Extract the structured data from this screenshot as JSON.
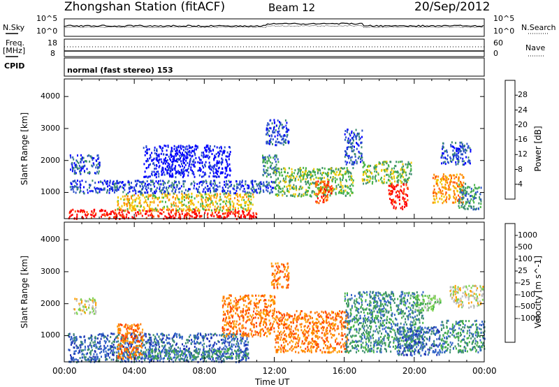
{
  "header": {
    "station": "Zhongshan Station (fitACF)",
    "beam": "Beam 12",
    "date": "20/Sep/2012"
  },
  "panels": {
    "sky_label": "N.Sky",
    "search_label": "N.Search",
    "sky_ticks_left": [
      "10^5",
      "10^0"
    ],
    "sky_ticks_right": [
      "10^5",
      "10^0"
    ],
    "freq_label_1": "Freq.",
    "freq_label_2": "[MHz]",
    "freq_ticks": [
      "18",
      "8"
    ],
    "nave_label": "Nave",
    "nave_ticks": [
      "60",
      "0"
    ],
    "cpid_label": "CPID",
    "cpid_text": "normal (fast stereo) 153"
  },
  "chart_data": [
    {
      "type": "heatmap",
      "name": "power",
      "ylabel": "Slant Range [km]",
      "yticks": [
        1000,
        2000,
        3000,
        4000
      ],
      "ylim": [
        180,
        4550
      ],
      "colorbar_label": "Power [dB]",
      "colorbar_ticks": [
        "4",
        "8",
        "12",
        "16",
        "20",
        "24",
        "28"
      ],
      "colors": [
        "#0000ff",
        "#2850c8",
        "#3c8c6e",
        "#46b446",
        "#f0c800",
        "#ff8c00",
        "#ff5000",
        "#ff0000"
      ],
      "regions": [
        {
          "t": [
            0.2,
            11.0
          ],
          "r": [
            200,
            500
          ],
          "level": 7
        },
        {
          "t": [
            3.0,
            10.8
          ],
          "r": [
            450,
            1000
          ],
          "level": 4
        },
        {
          "t": [
            0.3,
            12.0
          ],
          "r": [
            1000,
            1400
          ],
          "level": 1
        },
        {
          "t": [
            0.3,
            2.0
          ],
          "r": [
            1600,
            2200
          ],
          "level": 1
        },
        {
          "t": [
            4.5,
            9.5
          ],
          "r": [
            1500,
            2500
          ],
          "level": 0
        },
        {
          "t": [
            11.3,
            12.2
          ],
          "r": [
            1500,
            2200
          ],
          "level": 2
        },
        {
          "t": [
            11.5,
            12.8
          ],
          "r": [
            2500,
            3300
          ],
          "level": 1
        },
        {
          "t": [
            12.0,
            16.5
          ],
          "r": [
            900,
            1800
          ],
          "level": 3
        },
        {
          "t": [
            14.3,
            15.3
          ],
          "r": [
            700,
            1400
          ],
          "level": 6
        },
        {
          "t": [
            16.0,
            17.0
          ],
          "r": [
            1900,
            3000
          ],
          "level": 1
        },
        {
          "t": [
            17.0,
            19.8
          ],
          "r": [
            1300,
            2000
          ],
          "level": 3
        },
        {
          "t": [
            18.5,
            19.6
          ],
          "r": [
            500,
            1300
          ],
          "level": 7
        },
        {
          "t": [
            21.0,
            22.8
          ],
          "r": [
            700,
            1600
          ],
          "level": 5
        },
        {
          "t": [
            21.5,
            23.2
          ],
          "r": [
            1900,
            2600
          ],
          "level": 1
        },
        {
          "t": [
            22.5,
            23.8
          ],
          "r": [
            500,
            1300
          ],
          "level": 2
        }
      ]
    },
    {
      "type": "heatmap",
      "name": "velocity",
      "ylabel": "Slant Range [km]",
      "yticks": [
        1000,
        2000,
        3000,
        4000
      ],
      "ylim": [
        180,
        4550
      ],
      "xlabel": "Time UT",
      "xticks": [
        "00:00",
        "04:00",
        "08:00",
        "12:00",
        "16:00",
        "20:00",
        "00:00"
      ],
      "xlim": [
        0,
        24
      ],
      "colorbar_label": "Velocity [m s^-1]",
      "colorbar_ticks": [
        "1000",
        "500",
        "100",
        "25",
        "-25",
        "-100",
        "-500",
        "-1000"
      ],
      "colors": [
        "#1e32b4",
        "#3264c8",
        "#3c8c6e",
        "#46b446",
        "#7cd250",
        "#bebebe",
        "#ffa000",
        "#ff7800",
        "#ff4000",
        "#ff0000"
      ],
      "regions": [
        {
          "t": [
            0.2,
            10.5
          ],
          "r": [
            200,
            1100
          ],
          "level": 1
        },
        {
          "t": [
            3.5,
            10.5
          ],
          "r": [
            300,
            600
          ],
          "level": 2
        },
        {
          "t": [
            0.5,
            1.8
          ],
          "r": [
            1700,
            2200
          ],
          "level": 5
        },
        {
          "t": [
            3.0,
            4.5
          ],
          "r": [
            300,
            1400
          ],
          "level": 7
        },
        {
          "t": [
            9.0,
            12.0
          ],
          "r": [
            1000,
            2300
          ],
          "level": 7
        },
        {
          "t": [
            12.0,
            16.2
          ],
          "r": [
            500,
            1800
          ],
          "level": 7
        },
        {
          "t": [
            11.8,
            12.8
          ],
          "r": [
            2500,
            3300
          ],
          "level": 7
        },
        {
          "t": [
            16.0,
            20.5
          ],
          "r": [
            500,
            2400
          ],
          "level": 2
        },
        {
          "t": [
            19.0,
            21.5
          ],
          "r": [
            400,
            1300
          ],
          "level": 1
        },
        {
          "t": [
            20.0,
            21.5
          ],
          "r": [
            1800,
            2300
          ],
          "level": 4
        },
        {
          "t": [
            21.5,
            24.0
          ],
          "r": [
            500,
            1500
          ],
          "level": 2
        },
        {
          "t": [
            22.0,
            23.9
          ],
          "r": [
            1900,
            2600
          ],
          "level": 5
        }
      ]
    }
  ]
}
